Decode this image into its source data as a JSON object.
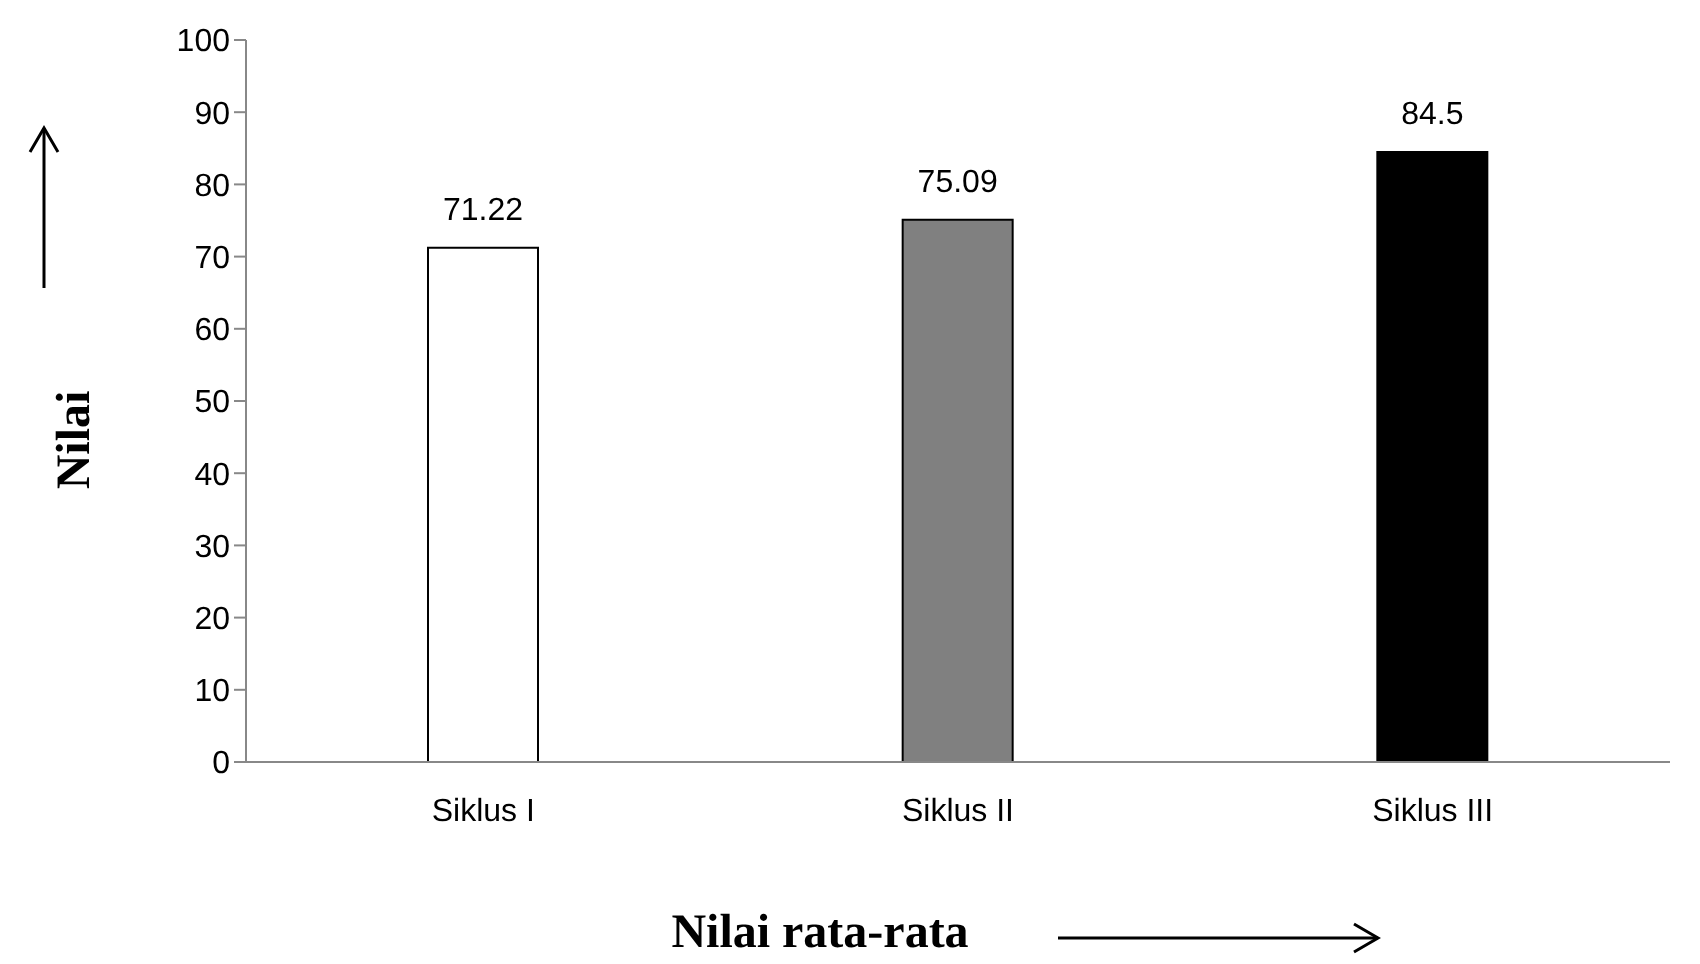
{
  "chart_data": {
    "type": "bar",
    "xlabel": "Nilai rata-rata",
    "ylabel": "Nilai",
    "categories": [
      "Siklus I",
      "Siklus II",
      "Siklus III"
    ],
    "values": [
      71.22,
      75.09,
      84.5
    ],
    "colors": [
      "#ffffff",
      "#808080",
      "#000000"
    ],
    "ylim": [
      0,
      100
    ],
    "yticks": [
      0,
      10,
      20,
      30,
      40,
      50,
      60,
      70,
      80,
      90,
      100
    ],
    "data_labels": true,
    "grid": false,
    "legend": false
  }
}
